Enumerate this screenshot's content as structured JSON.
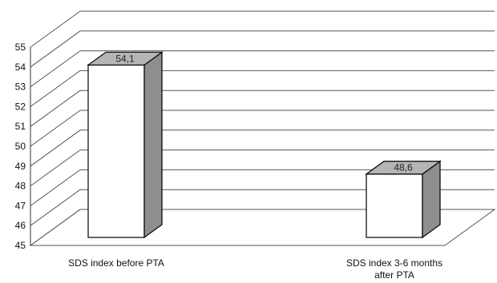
{
  "chart_data": {
    "type": "bar",
    "style": "3d",
    "categories": [
      [
        "SDS index before PTA"
      ],
      [
        "SDS index 3-6 months",
        "after PTA"
      ]
    ],
    "values": [
      54.1,
      48.6
    ],
    "data_labels": [
      "54,1",
      "48,6"
    ],
    "ylim": [
      45,
      55
    ],
    "ytick_labels": [
      "45",
      "46",
      "47",
      "48",
      "49",
      "50",
      "51",
      "52",
      "53",
      "54",
      "55"
    ],
    "grid": true,
    "legend": "none",
    "title": "",
    "xlabel": "",
    "ylabel": "",
    "colors": {
      "bar_front": "#ffffff",
      "bar_top": "#b5b5b5",
      "bar_side": "#8e8e8e",
      "bar_edge": "#000000",
      "grid": "#555555",
      "axis": "#333333"
    }
  }
}
